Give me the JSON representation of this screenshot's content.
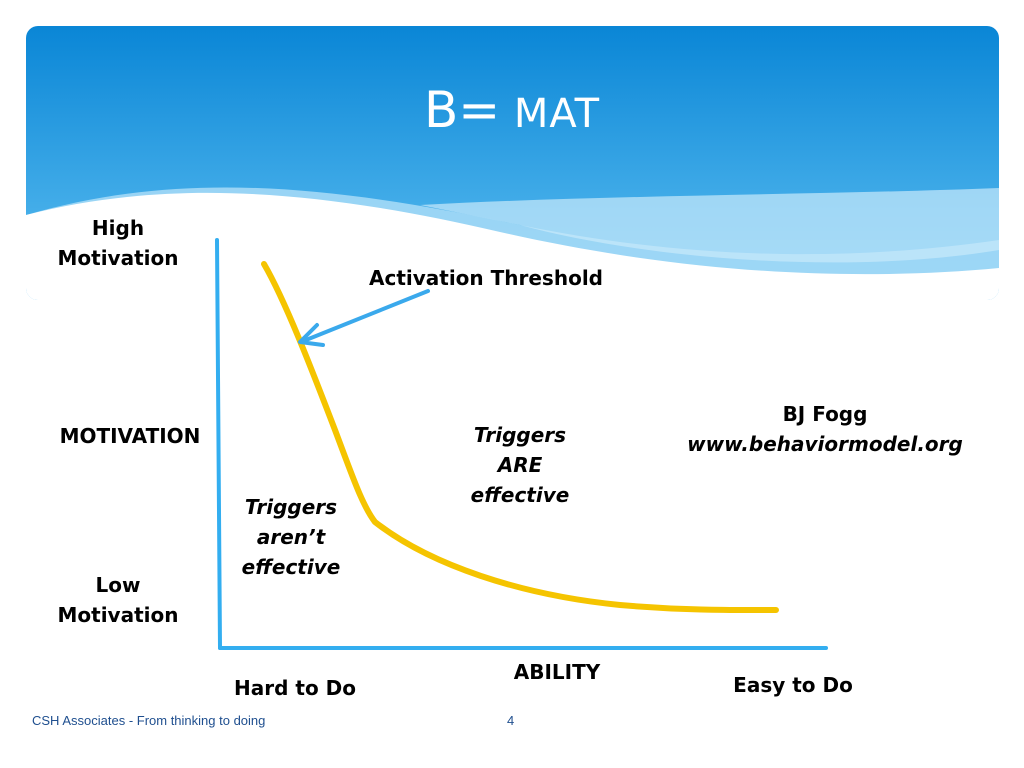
{
  "slide": {
    "title_main": "B=",
    "title_formula": " MAT"
  },
  "axes": {
    "y_high_line1": "High",
    "y_high_line2": "Motivation",
    "y_label": "MOTIVATION",
    "y_low_line1": "Low",
    "y_low_line2": "Motivation",
    "x_label": "ABILITY",
    "x_left": "Hard to Do",
    "x_right": "Easy to Do"
  },
  "annotations": {
    "activation_threshold": "Activation Threshold",
    "triggers_not_line1": "Triggers",
    "triggers_not_line2": "aren’t",
    "triggers_not_line3": "effective",
    "triggers_are_line1": "Triggers",
    "triggers_are_line2": "ARE",
    "triggers_are_line3": "effective",
    "credit_name": "BJ Fogg",
    "credit_url": "www.behaviormodel.org"
  },
  "footer": {
    "company": "CSH Associates  - From thinking to doing",
    "page_number": "4"
  },
  "colors": {
    "header_top": "#0a86d6",
    "header_bottom": "#5fc0f2",
    "axis": "#33aef0",
    "curve": "#f5c400",
    "arrow": "#3aa9ec"
  }
}
